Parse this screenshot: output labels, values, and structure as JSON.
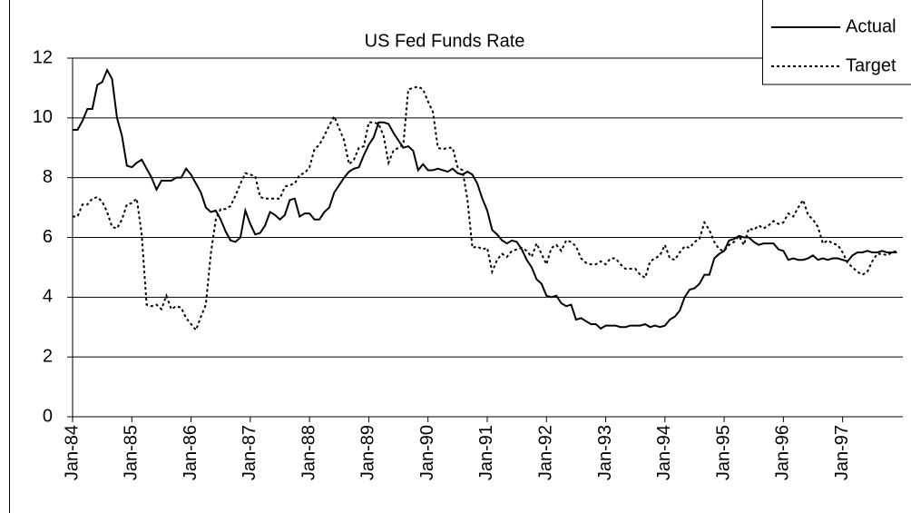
{
  "chart_data": {
    "type": "line",
    "title": "US Fed Funds Rate",
    "categories": [
      "Jan-84",
      null,
      null,
      null,
      null,
      null,
      null,
      null,
      null,
      null,
      null,
      null,
      "Jan-85",
      null,
      null,
      null,
      null,
      null,
      null,
      null,
      null,
      null,
      null,
      null,
      "Jan-86",
      null,
      null,
      null,
      null,
      null,
      null,
      null,
      null,
      null,
      null,
      null,
      "Jan-87",
      null,
      null,
      null,
      null,
      null,
      null,
      null,
      null,
      null,
      null,
      null,
      "Jan-88",
      null,
      null,
      null,
      null,
      null,
      null,
      null,
      null,
      null,
      null,
      null,
      "Jan-89",
      null,
      null,
      null,
      null,
      null,
      null,
      null,
      null,
      null,
      null,
      null,
      "Jan-90",
      null,
      null,
      null,
      null,
      null,
      null,
      null,
      null,
      null,
      null,
      null,
      "Jan-91",
      null,
      null,
      null,
      null,
      null,
      null,
      null,
      null,
      null,
      null,
      null,
      "Jan-92",
      null,
      null,
      null,
      null,
      null,
      null,
      null,
      null,
      null,
      null,
      null,
      "Jan-93",
      null,
      null,
      null,
      null,
      null,
      null,
      null,
      null,
      null,
      null,
      null,
      "Jan-94",
      null,
      null,
      null,
      null,
      null,
      null,
      null,
      null,
      null,
      null,
      null,
      "Jan-95",
      null,
      null,
      null,
      null,
      null,
      null,
      null,
      null,
      null,
      null,
      null,
      "Jan-96",
      null,
      null,
      null,
      null,
      null,
      null,
      null,
      null,
      null,
      null,
      null,
      "Jan-97",
      null,
      null,
      null,
      null,
      null,
      null,
      null,
      null,
      null,
      null,
      null
    ],
    "series": [
      {
        "name": "Actual",
        "color": "#000000",
        "dash": "solid",
        "values": [
          9.6,
          9.6,
          9.9,
          10.3,
          10.3,
          11.1,
          11.2,
          11.6,
          11.3,
          10.0,
          9.4,
          8.4,
          8.35,
          8.5,
          8.6,
          8.3,
          8.0,
          7.6,
          7.9,
          7.9,
          7.9,
          8.0,
          8.0,
          8.3,
          8.1,
          7.8,
          7.5,
          7.0,
          6.85,
          6.9,
          6.6,
          6.2,
          5.9,
          5.85,
          6.0,
          6.9,
          6.45,
          6.1,
          6.15,
          6.4,
          6.85,
          6.75,
          6.6,
          6.75,
          7.25,
          7.3,
          6.7,
          6.8,
          6.8,
          6.6,
          6.6,
          6.85,
          7.0,
          7.5,
          7.75,
          8.0,
          8.2,
          8.3,
          8.35,
          8.75,
          9.1,
          9.35,
          9.85,
          9.85,
          9.8,
          9.5,
          9.25,
          9.0,
          9.05,
          8.9,
          8.25,
          8.45,
          8.25,
          8.25,
          8.3,
          8.25,
          8.2,
          8.3,
          8.15,
          8.1,
          8.2,
          8.1,
          7.8,
          7.3,
          6.9,
          6.25,
          6.1,
          5.9,
          5.8,
          5.9,
          5.85,
          5.6,
          5.25,
          5.0,
          4.6,
          4.45,
          4.05,
          4.0,
          4.05,
          3.8,
          3.7,
          3.75,
          3.25,
          3.3,
          3.2,
          3.1,
          3.1,
          2.95,
          3.05,
          3.05,
          3.05,
          3.0,
          3.0,
          3.05,
          3.05,
          3.05,
          3.1,
          3.0,
          3.05,
          3.0,
          3.05,
          3.25,
          3.35,
          3.55,
          4.0,
          4.25,
          4.3,
          4.45,
          4.75,
          4.75,
          5.3,
          5.45,
          5.55,
          5.9,
          5.95,
          6.05,
          6.0,
          6.0,
          5.85,
          5.75,
          5.8,
          5.8,
          5.8,
          5.6,
          5.55,
          5.25,
          5.3,
          5.25,
          5.25,
          5.3,
          5.4,
          5.25,
          5.3,
          5.25,
          5.3,
          5.3,
          5.25,
          5.2,
          5.4,
          5.5,
          5.5,
          5.55,
          5.5,
          5.5,
          5.55,
          5.5,
          5.5,
          5.5
        ]
      },
      {
        "name": "Target",
        "color": "#000000",
        "dash": "dotted",
        "values": [
          6.7,
          6.7,
          7.1,
          7.1,
          7.3,
          7.35,
          7.2,
          6.85,
          6.35,
          6.3,
          6.6,
          7.1,
          7.15,
          7.3,
          6.1,
          3.75,
          3.7,
          3.75,
          3.6,
          4.05,
          3.6,
          3.7,
          3.65,
          3.3,
          3.1,
          2.9,
          3.35,
          3.75,
          5.45,
          6.6,
          6.95,
          6.95,
          7.05,
          7.4,
          7.8,
          8.15,
          8.1,
          8.05,
          7.35,
          7.3,
          7.3,
          7.3,
          7.3,
          7.7,
          7.75,
          7.8,
          8.1,
          8.15,
          8.35,
          8.95,
          9.1,
          9.4,
          9.75,
          10.05,
          9.65,
          9.25,
          8.45,
          8.6,
          9.0,
          9.05,
          9.85,
          9.85,
          9.8,
          9.4,
          8.5,
          8.9,
          9.0,
          9.1,
          10.95,
          11.0,
          11.05,
          10.95,
          10.55,
          10.2,
          9.0,
          8.95,
          9.0,
          9.0,
          8.35,
          8.25,
          7.25,
          5.65,
          5.7,
          5.6,
          5.65,
          4.85,
          5.25,
          5.45,
          5.35,
          5.55,
          5.6,
          5.65,
          5.55,
          5.35,
          5.8,
          5.45,
          5.1,
          5.65,
          5.75,
          5.55,
          5.9,
          5.85,
          5.7,
          5.3,
          5.15,
          5.1,
          5.1,
          5.2,
          5.1,
          5.3,
          5.3,
          5.1,
          4.95,
          4.95,
          4.95,
          4.75,
          4.65,
          5.2,
          5.3,
          5.4,
          5.75,
          5.3,
          5.25,
          5.5,
          5.7,
          5.65,
          5.85,
          5.95,
          6.5,
          6.25,
          5.85,
          5.6,
          5.55,
          5.75,
          5.85,
          6.05,
          5.75,
          6.3,
          6.25,
          6.4,
          6.3,
          6.4,
          6.55,
          6.45,
          6.5,
          6.8,
          6.7,
          7.0,
          7.25,
          6.75,
          6.6,
          6.35,
          5.8,
          5.9,
          5.8,
          5.75,
          5.5,
          5.15,
          5.0,
          4.85,
          4.75,
          4.85,
          5.2,
          5.45,
          5.45,
          5.4,
          5.5,
          5.55
        ]
      }
    ],
    "ylim": [
      0,
      12
    ],
    "yticks": [
      0,
      2,
      4,
      6,
      8,
      10,
      12
    ],
    "grid": true,
    "legend": "top-right"
  }
}
